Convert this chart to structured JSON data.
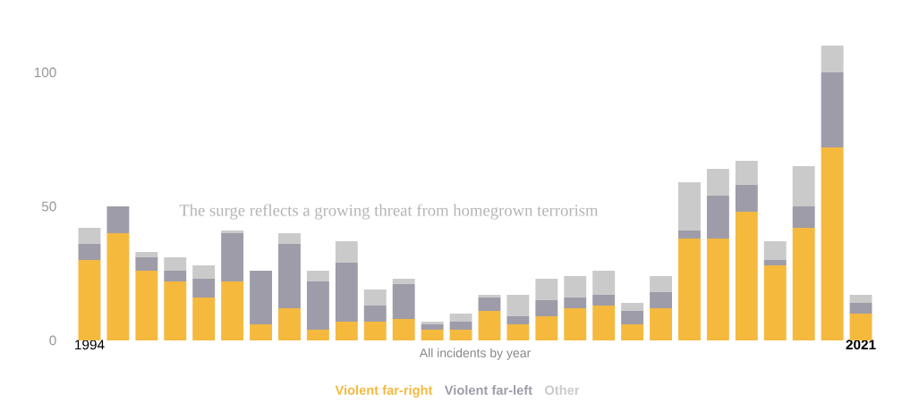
{
  "chart_data": {
    "type": "bar",
    "stacked": true,
    "xlabel": "All incidents by year",
    "categories": [
      "1994",
      null,
      null,
      null,
      null,
      null,
      null,
      null,
      null,
      null,
      null,
      null,
      null,
      null,
      null,
      null,
      null,
      null,
      null,
      null,
      null,
      null,
      null,
      null,
      null,
      null,
      null,
      "2021"
    ],
    "series": [
      {
        "name": "Violent far-right",
        "color": "#f5b93e",
        "values": [
          30,
          40,
          26,
          22,
          16,
          22,
          6,
          12,
          4,
          7,
          7,
          8,
          4,
          4,
          11,
          6,
          9,
          12,
          13,
          6,
          12,
          38,
          38,
          48,
          28,
          42,
          72,
          10
        ]
      },
      {
        "name": "Violent far-left",
        "color": "#9e9ca8",
        "values": [
          6,
          10,
          5,
          4,
          7,
          18,
          20,
          24,
          18,
          22,
          6,
          13,
          2,
          3,
          5,
          3,
          6,
          4,
          4,
          5,
          6,
          3,
          16,
          10,
          2,
          8,
          28,
          4
        ]
      },
      {
        "name": "Other",
        "color": "#cacaca",
        "values": [
          6,
          0,
          2,
          5,
          5,
          1,
          0,
          4,
          4,
          8,
          6,
          2,
          1,
          3,
          1,
          8,
          8,
          8,
          9,
          3,
          6,
          18,
          10,
          9,
          7,
          15,
          10,
          3
        ]
      }
    ],
    "ylim": [
      0,
      110
    ],
    "yticks": [
      0,
      50,
      100
    ],
    "legend": "bottom",
    "annotations": [
      "The surge reflects a growing threat from homegrown terrorism"
    ]
  }
}
